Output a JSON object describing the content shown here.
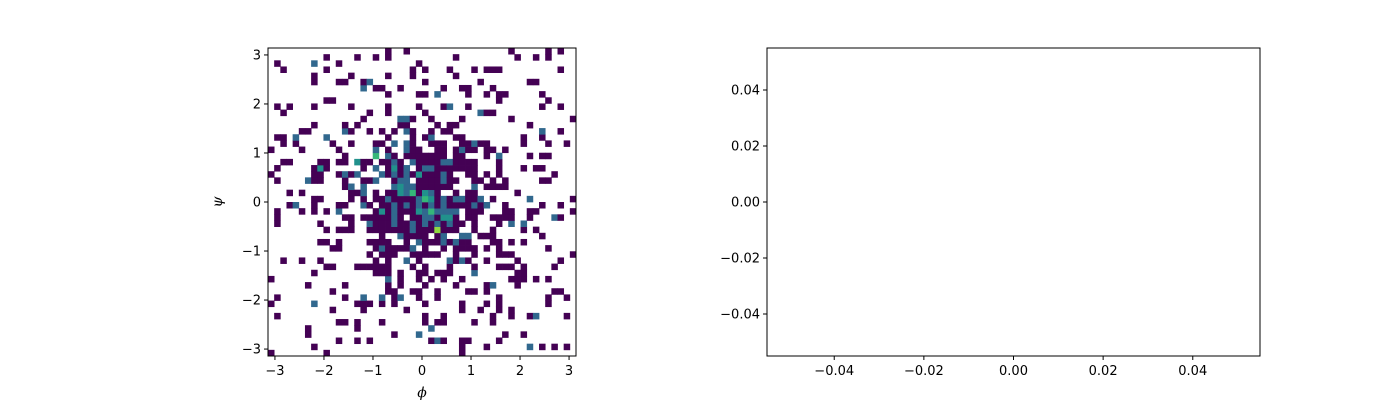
{
  "chart_data": [
    {
      "type": "heatmap",
      "title": "",
      "xlabel": "ϕ",
      "ylabel": "ψ",
      "xlim": [
        -3.1416,
        3.1416
      ],
      "ylim": [
        -3.1416,
        3.1416
      ],
      "xticks": [
        -3,
        -2,
        -1,
        0,
        1,
        2,
        3
      ],
      "yticks": [
        -3,
        -2,
        -1,
        0,
        1,
        2,
        3
      ],
      "xtick_labels": [
        "−3",
        "−2",
        "−1",
        "0",
        "1",
        "2",
        "3"
      ],
      "ytick_labels": [
        "−3",
        "−2",
        "−1",
        "0",
        "1",
        "2",
        "3"
      ],
      "bins": [
        50,
        50
      ],
      "colormap": "viridis",
      "colors": [
        "#440154",
        "#31688e",
        "#21918c",
        "#35b779",
        "#90d743",
        "#fde725"
      ],
      "grid": false,
      "legend": "none",
      "cells": [
        [
          -2.1,
          0.7,
          3
        ],
        [
          -1.3,
          0.85,
          3
        ],
        [
          -0.9,
          0.95,
          4
        ],
        [
          -0.6,
          0.7,
          3
        ],
        [
          -1.0,
          0.45,
          2
        ],
        [
          -1.5,
          0.35,
          2
        ],
        [
          -0.4,
          0.3,
          3
        ],
        [
          -0.2,
          0.15,
          4
        ],
        [
          0.0,
          0.05,
          4
        ],
        [
          0.15,
          0.0,
          3
        ],
        [
          -0.05,
          -0.15,
          3
        ],
        [
          0.25,
          -0.2,
          4
        ],
        [
          0.4,
          -0.3,
          3
        ],
        [
          0.3,
          -0.6,
          5
        ],
        [
          0.05,
          0.25,
          3
        ],
        [
          -0.3,
          -0.05,
          2
        ],
        [
          -0.75,
          0.05,
          2
        ],
        [
          0.6,
          -0.35,
          3
        ],
        [
          0.1,
          -0.45,
          2
        ],
        [
          -0.5,
          0.2,
          3
        ],
        [
          -1.2,
          0.15,
          2
        ],
        [
          -0.85,
          -0.15,
          3
        ],
        [
          0.7,
          0.0,
          2
        ],
        [
          -0.1,
          0.55,
          3
        ],
        [
          -0.3,
          1.05,
          2
        ],
        [
          0.85,
          -0.7,
          2
        ],
        [
          1.3,
          -0.05,
          2
        ],
        [
          -1.6,
          0.6,
          2
        ],
        [
          1.8,
          -0.45,
          2
        ],
        [
          -0.55,
          -0.5,
          2
        ],
        [
          0.5,
          0.45,
          2
        ],
        [
          -0.95,
          1.1,
          2
        ],
        [
          -0.15,
          -0.9,
          2
        ],
        [
          1.05,
          0.3,
          2
        ],
        [
          -2.3,
          0.4,
          2
        ],
        [
          0.2,
          1.35,
          2
        ],
        [
          -1.75,
          -0.25,
          2
        ],
        [
          2.7,
          -0.35,
          2
        ],
        [
          -0.4,
          1.65,
          2
        ],
        [
          0.6,
          -1.25,
          2
        ],
        [
          -2.55,
          -0.1,
          2
        ],
        [
          1.6,
          0.95,
          2
        ],
        [
          -0.7,
          -1.55,
          2
        ],
        [
          2.2,
          0.1,
          2
        ],
        [
          -1.1,
          2.5,
          2
        ],
        [
          0.35,
          2.2,
          2
        ],
        [
          -0.1,
          -2.7,
          2
        ],
        [
          1.4,
          -1.7,
          2
        ],
        [
          -1.95,
          1.35,
          2
        ],
        [
          2.45,
          1.4,
          2
        ]
      ]
    },
    {
      "type": "scatter",
      "title": "",
      "xlabel": "",
      "ylabel": "",
      "xlim": [
        -0.055,
        0.055
      ],
      "ylim": [
        -0.055,
        0.055
      ],
      "xticks": [
        -0.04,
        -0.02,
        0.0,
        0.02,
        0.04
      ],
      "yticks": [
        -0.04,
        -0.02,
        0.0,
        0.02,
        0.04
      ],
      "xtick_labels": [
        "−0.04",
        "−0.02",
        "0.00",
        "0.02",
        "0.04"
      ],
      "ytick_labels": [
        "−0.04",
        "−0.02",
        "0.00",
        "0.02",
        "0.04"
      ],
      "grid": false,
      "legend": "none",
      "x": [],
      "y": []
    }
  ]
}
